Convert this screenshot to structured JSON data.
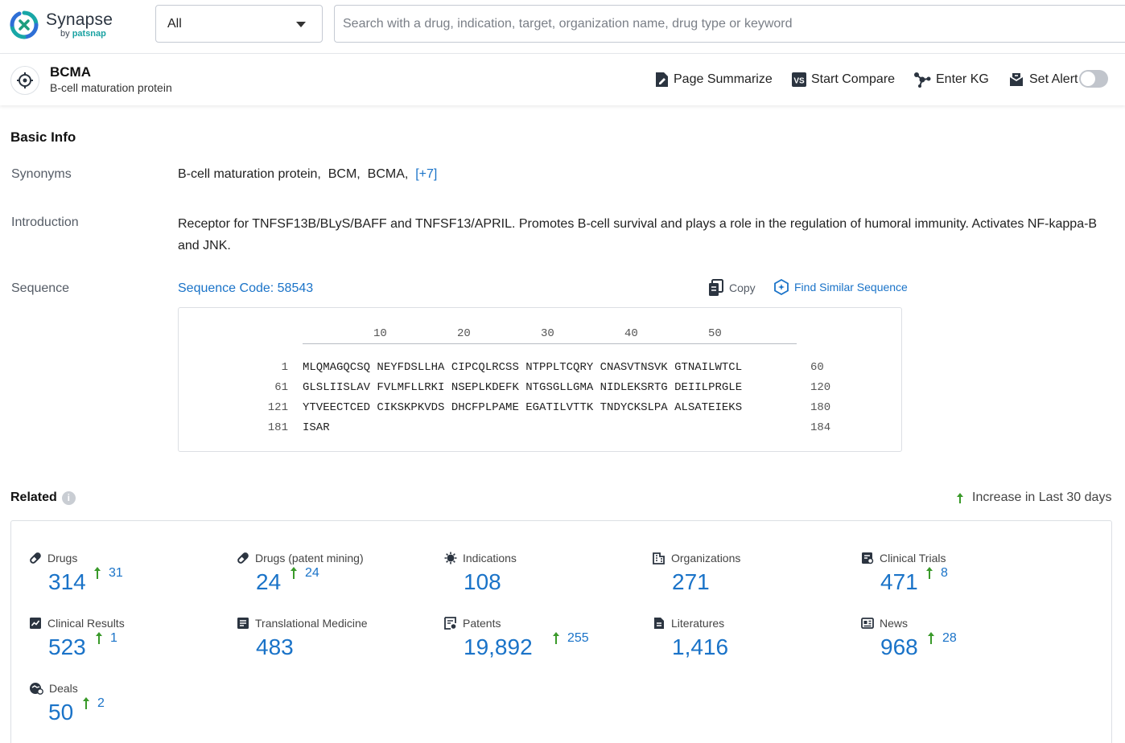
{
  "app": {
    "name": "Synapse",
    "by_prefix": "by",
    "by_brand": "patsnap",
    "accent": "#1a73c8",
    "increase_color": "#3a9a2a"
  },
  "header": {
    "scope_value": "All",
    "search_placeholder": "Search with a drug, indication, target, organization name, drug type or keyword"
  },
  "entity": {
    "title": "BCMA",
    "subtitle": "B-cell maturation protein",
    "actions": [
      {
        "label": "Page Summarize",
        "icon": "summarize-icon"
      },
      {
        "label": "Start Compare",
        "icon": "compare-icon"
      },
      {
        "label": "Enter KG",
        "icon": "knowledge-graph-icon"
      },
      {
        "label": "Set Alert",
        "icon": "alert-icon"
      }
    ],
    "alert_enabled": false
  },
  "basic_info": {
    "title": "Basic Info",
    "synonyms_label": "Synonyms",
    "synonyms": [
      "B-cell maturation protein,",
      "BCM,",
      "BCMA,"
    ],
    "synonyms_more": "[+7]",
    "introduction_label": "Introduction",
    "introduction": "Receptor for TNFSF13B/BLyS/BAFF and TNFSF13/APRIL. Promotes B-cell survival and plays a role in the regulation of humoral immunity. Activates NF-kappa-B and JNK.",
    "sequence_label": "Sequence",
    "sequence_code": "Sequence Code: 58543",
    "copy_label": "Copy",
    "find_similar_label": "Find Similar Sequence",
    "ruler": [
      "10",
      "20",
      "30",
      "40",
      "50"
    ],
    "sequence_rows": [
      {
        "start": "1",
        "blocks": "MLQMAGQCSQ NEYFDSLLHA CIPCQLRCSS NTPPLTCQRY CNASVTNSVK GTNAILWTCL",
        "end": "60"
      },
      {
        "start": "61",
        "blocks": "GLSLIISLAV FVLMFLLRKI NSEPLKDEFK NTGSGLLGMA NIDLEKSRTG DEIILPRGLE",
        "end": "120"
      },
      {
        "start": "121",
        "blocks": "YTVEECTCED CIKSKPKVDS DHCFPLPAME EGATILVTTK TNDYCKSLPA ALSATEIEKS",
        "end": "180"
      },
      {
        "start": "181",
        "blocks": "ISAR",
        "end": "184"
      }
    ]
  },
  "related": {
    "title": "Related",
    "info_glyph": "i",
    "legend_label": "Increase in Last 30 days",
    "items": [
      {
        "label": "Drugs",
        "icon": "pill-icon",
        "count": "314",
        "increase": "31"
      },
      {
        "label": "Drugs (patent mining)",
        "icon": "pill-icon",
        "count": "24",
        "increase": "24"
      },
      {
        "label": "Indications",
        "icon": "virus-icon",
        "count": "108",
        "increase": ""
      },
      {
        "label": "Organizations",
        "icon": "building-icon",
        "count": "271",
        "increase": ""
      },
      {
        "label": "Clinical Trials",
        "icon": "clinical-trial-icon",
        "count": "471",
        "increase": "8"
      },
      {
        "label": "Clinical Results",
        "icon": "chart-report-icon",
        "count": "523",
        "increase": "1"
      },
      {
        "label": "Translational Medicine",
        "icon": "document-icon",
        "count": "483",
        "increase": ""
      },
      {
        "label": "Patents",
        "icon": "patent-icon",
        "count": "19,892",
        "increase": "255"
      },
      {
        "label": "Literatures",
        "icon": "literature-icon",
        "count": "1,416",
        "increase": ""
      },
      {
        "label": "News",
        "icon": "news-icon",
        "count": "968",
        "increase": "28"
      },
      {
        "label": "Deals",
        "icon": "deal-icon",
        "count": "50",
        "increase": "2"
      }
    ]
  }
}
